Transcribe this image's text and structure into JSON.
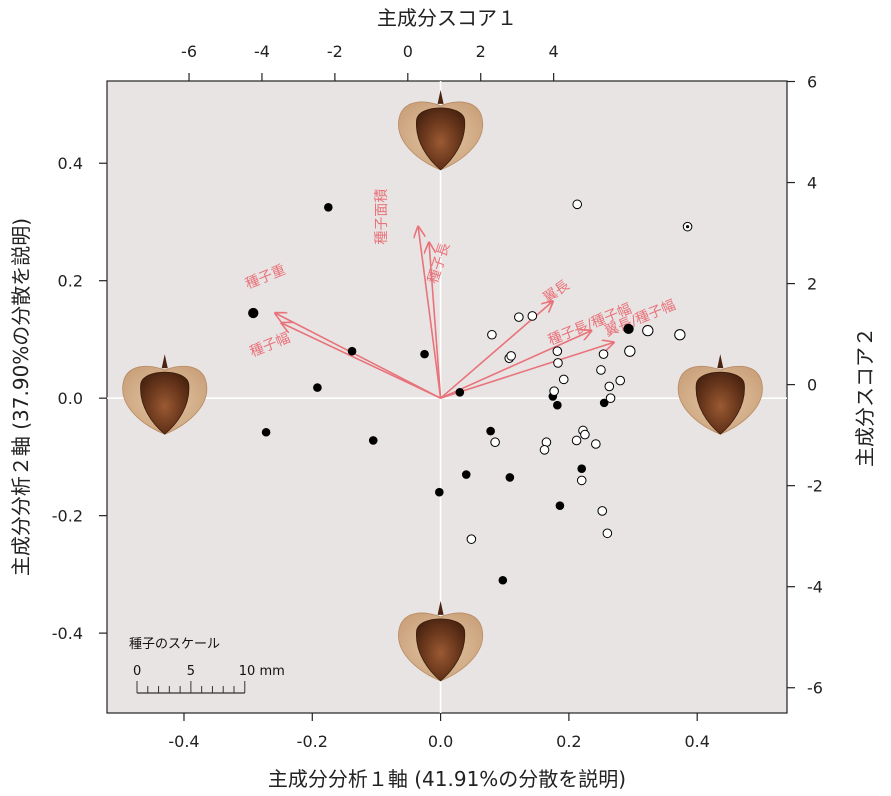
{
  "chart_data": {
    "type": "scatter",
    "subtype": "PCA biplot",
    "title": "",
    "xlabel": "主成分分析１軸 (41.91%の分散を説明)",
    "ylabel": "主成分分析２軸 (37.90%の分散を説明)",
    "top_axis_label": "主成分スコア１",
    "right_axis_label": "主成分スコア２",
    "xlim": [
      -0.52,
      0.54
    ],
    "ylim": [
      -0.536,
      0.54
    ],
    "x_ticks": [
      -0.4,
      -0.2,
      0.0,
      0.2,
      0.4
    ],
    "x_tick_labels": [
      "-0.4",
      "-0.2",
      "0.0",
      "0.2",
      "0.4"
    ],
    "y_ticks": [
      -0.4,
      -0.2,
      0.0,
      0.2,
      0.4
    ],
    "y_tick_labels": [
      "-0.4",
      "-0.2",
      "0.0",
      "0.2",
      "0.4"
    ],
    "top_ticks": [
      -6,
      -4,
      -2,
      0,
      2,
      4
    ],
    "top_tick_labels": [
      "-6",
      "-4",
      "-2",
      "0",
      "2",
      "4"
    ],
    "top_xlim": [
      -8.25,
      10.4
    ],
    "right_ticks": [
      -6,
      -4,
      -2,
      0,
      2,
      4,
      6
    ],
    "right_tick_labels": [
      "-6",
      "-4",
      "-2",
      "0",
      "2",
      "4",
      "6"
    ],
    "right_ylim": [
      -6.5,
      6.01
    ],
    "grid": false,
    "zero_lines": true,
    "colors": {
      "panel": "#e9e4e4",
      "zero_line": "#ffffff",
      "arrow": "#e8737a",
      "point_filled": "#000000",
      "point_open_fill": "#ffffff",
      "point_open_stroke": "#000000"
    },
    "series": [
      {
        "marker": "filled",
        "points": [
          [
            -0.175,
            0.325
          ],
          [
            -0.292,
            0.145
          ],
          [
            -0.138,
            0.08
          ],
          [
            -0.025,
            0.075
          ],
          [
            -0.192,
            0.018
          ],
          [
            -0.272,
            -0.058
          ],
          [
            -0.105,
            -0.072
          ],
          [
            0.03,
            0.01
          ],
          [
            0.078,
            -0.056
          ],
          [
            -0.002,
            -0.16
          ],
          [
            0.04,
            -0.13
          ],
          [
            0.108,
            -0.135
          ],
          [
            0.097,
            -0.31
          ],
          [
            0.186,
            -0.183
          ],
          [
            0.22,
            -0.12
          ],
          [
            0.175,
            0.003
          ],
          [
            0.182,
            -0.012
          ],
          [
            0.255,
            -0.008
          ],
          [
            0.293,
            0.118
          ]
        ],
        "sizes": [
          1,
          1.2,
          1,
          1,
          1,
          1,
          1,
          1,
          1,
          1,
          1,
          1,
          1,
          1,
          1,
          1,
          1,
          1,
          1.2
        ]
      },
      {
        "marker": "open",
        "points": [
          [
            0.213,
            0.33
          ],
          [
            0.385,
            0.292
          ],
          [
            0.08,
            0.108
          ],
          [
            0.122,
            0.138
          ],
          [
            0.143,
            0.14
          ],
          [
            0.107,
            0.068
          ],
          [
            0.11,
            0.072
          ],
          [
            0.182,
            0.08
          ],
          [
            0.183,
            0.06
          ],
          [
            0.254,
            0.075
          ],
          [
            0.25,
            0.048
          ],
          [
            0.192,
            0.032
          ],
          [
            0.177,
            0.012
          ],
          [
            0.263,
            0.02
          ],
          [
            0.28,
            0.03
          ],
          [
            0.265,
            0.0
          ],
          [
            0.295,
            0.08
          ],
          [
            0.323,
            0.115
          ],
          [
            0.373,
            0.108
          ],
          [
            0.085,
            -0.075
          ],
          [
            0.165,
            -0.075
          ],
          [
            0.162,
            -0.088
          ],
          [
            0.212,
            -0.072
          ],
          [
            0.222,
            -0.055
          ],
          [
            0.225,
            -0.062
          ],
          [
            0.242,
            -0.078
          ],
          [
            0.22,
            -0.14
          ],
          [
            0.252,
            -0.192
          ],
          [
            0.26,
            -0.23
          ],
          [
            0.048,
            -0.24
          ]
        ],
        "sizes": [
          1,
          1,
          1,
          1,
          1,
          1,
          1,
          1,
          1,
          1,
          1,
          1,
          1,
          1,
          1,
          1,
          1.2,
          1.2,
          1.2,
          1,
          1,
          1,
          1,
          1,
          1,
          1,
          1,
          1,
          1,
          1
        ],
        "dotted_index": 1
      }
    ],
    "loadings": [
      {
        "label": "種子重",
        "x": -0.258,
        "y": 0.145
      },
      {
        "label": "種子幅",
        "x": -0.248,
        "y": 0.128
      },
      {
        "label": "種子面積",
        "x": -0.035,
        "y": 0.292
      },
      {
        "label": "種子長",
        "x": -0.018,
        "y": 0.265
      },
      {
        "label": "翼長",
        "x": 0.175,
        "y": 0.165
      },
      {
        "label": "種子長/種子幅",
        "x": 0.235,
        "y": 0.115
      },
      {
        "label": "翼長/種子幅",
        "x": 0.27,
        "y": 0.095
      }
    ],
    "seed_images": [
      {
        "name": "seed-image-top",
        "x": 0.0,
        "y": 0.45
      },
      {
        "name": "seed-image-left",
        "x": -0.43,
        "y": 0.0
      },
      {
        "name": "seed-image-right",
        "x": 0.436,
        "y": -0.0
      },
      {
        "name": "seed-image-bottom",
        "x": 0.0,
        "y": -0.42
      }
    ],
    "scale_bar": {
      "title": "種子のスケール",
      "labels": [
        "0",
        "5",
        "10 mm"
      ],
      "max_mm": 10,
      "length_data_units": 0.168
    }
  }
}
